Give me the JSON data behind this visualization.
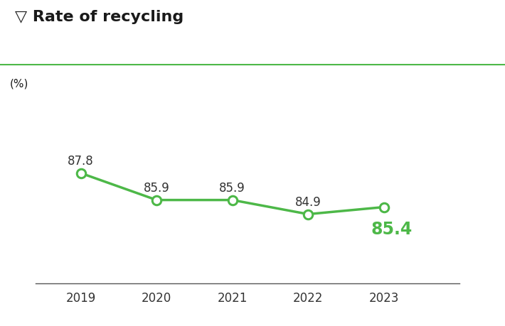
{
  "title": "▽ Rate of recycling",
  "ylabel": "(%)",
  "years": [
    2019,
    2020,
    2021,
    2022,
    2023
  ],
  "values": [
    87.8,
    85.9,
    85.9,
    84.9,
    85.4
  ],
  "labels": [
    "87.8",
    "85.9",
    "85.9",
    "84.9",
    "85.4"
  ],
  "line_color": "#4db848",
  "marker_face": "#ffffff",
  "marker_edge": "#4db848",
  "title_color": "#1a1a1a",
  "label_color": "#333333",
  "last_label_color": "#4db848",
  "background_color": "#ffffff",
  "text_color": "#1a1a1a",
  "tick_color": "#333333",
  "axis_color": "#555555",
  "green_line_color": "#4db848",
  "title_fontsize": 16,
  "label_fontsize": 12,
  "ylabel_fontsize": 11,
  "xlabel_fontsize": 9,
  "last_label_fontsize": 17,
  "ylim_min": 80,
  "ylim_max": 92,
  "xlim_min": 2018.4,
  "xlim_max": 2024.0
}
